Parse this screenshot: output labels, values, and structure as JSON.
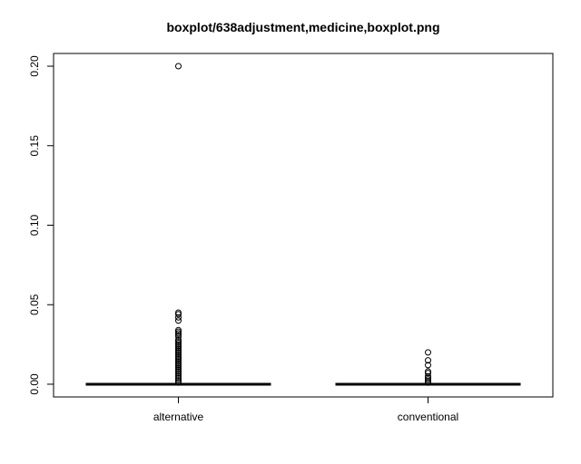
{
  "chart_data": {
    "type": "boxplot",
    "title": "boxplot/638adjustment,medicine,boxplot.png",
    "xlabel": "",
    "ylabel": "",
    "ylim": [
      -0.008,
      0.208
    ],
    "yticks": [
      0.0,
      0.05,
      0.1,
      0.15,
      0.2
    ],
    "ytick_labels": [
      "0.00",
      "0.05",
      "0.10",
      "0.15",
      "0.20"
    ],
    "categories": [
      "alternative",
      "conventional"
    ],
    "series": [
      {
        "category": "alternative",
        "min": 0.0,
        "q1": 0.0,
        "median": 0.0,
        "q3": 0.0,
        "max": 0.0,
        "outliers": [
          0.2,
          0.045,
          0.044,
          0.042,
          0.04,
          0.034,
          0.033,
          0.032,
          0.031,
          0.03,
          0.028,
          0.027,
          0.026,
          0.025,
          0.024,
          0.023,
          0.022,
          0.021,
          0.02,
          0.019,
          0.018,
          0.017,
          0.016,
          0.015,
          0.014,
          0.013,
          0.012,
          0.011,
          0.01,
          0.009,
          0.008,
          0.007,
          0.006,
          0.005,
          0.004,
          0.003,
          0.002,
          0.001
        ]
      },
      {
        "category": "conventional",
        "min": 0.0,
        "q1": 0.0,
        "median": 0.0,
        "q3": 0.0,
        "max": 0.0,
        "outliers": [
          0.02,
          0.015,
          0.012,
          0.008,
          0.007,
          0.005,
          0.004,
          0.003,
          0.002,
          0.001
        ]
      }
    ],
    "grid": false
  }
}
